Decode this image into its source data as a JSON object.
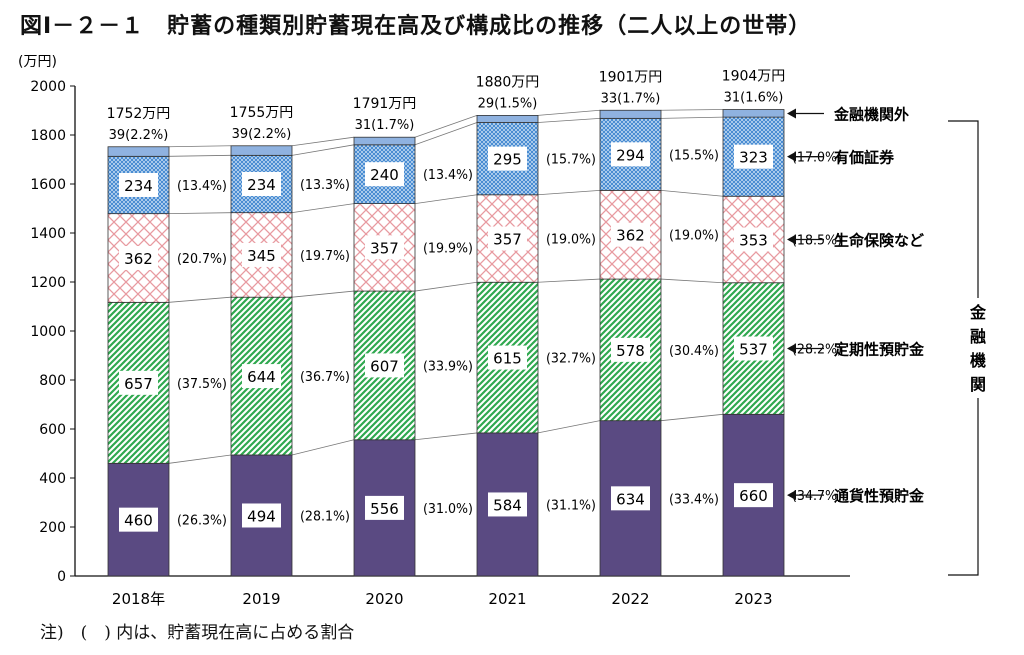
{
  "title": "図Ⅰ－２－１　貯蓄の種類別貯蓄現在高及び構成比の推移（二人以上の世帯）",
  "note": "注)　(　) 内は、貯蓄現在高に占める割合",
  "chart_data": {
    "type": "bar",
    "stacked": true,
    "ylabel": "(万円)",
    "ylim": [
      0,
      2000
    ],
    "yticks": [
      0,
      200,
      400,
      600,
      800,
      1000,
      1200,
      1400,
      1600,
      1800,
      2000
    ],
    "categories": [
      "2018年",
      "2019",
      "2020",
      "2021",
      "2022",
      "2023"
    ],
    "totals": [
      "1752万円",
      "1755万円",
      "1791万円",
      "1880万円",
      "1901万円",
      "1904万円"
    ],
    "total_values": [
      1752,
      1755,
      1791,
      1880,
      1901,
      1904
    ],
    "legend_placement": "right",
    "group_label": "金融機関",
    "series": [
      {
        "name": "通貨性預貯金",
        "pattern": "solid",
        "color": "#5a4a82",
        "values": [
          460,
          494,
          556,
          584,
          634,
          660
        ],
        "labels": [
          "460",
          "494",
          "556",
          "584",
          "634",
          "660"
        ],
        "shares": [
          "(26.3%)",
          "(28.1%)",
          "(31.0%)",
          "(31.1%)",
          "(33.4%)",
          "(34.7%)"
        ]
      },
      {
        "name": "定期性預貯金",
        "pattern": "diagonal",
        "color": "#2fa84f",
        "values": [
          657,
          644,
          607,
          615,
          578,
          537
        ],
        "labels": [
          "657",
          "644",
          "607",
          "615",
          "578",
          "537"
        ],
        "shares": [
          "(37.5%)",
          "(36.7%)",
          "(33.9%)",
          "(32.7%)",
          "(30.4%)",
          "(28.2%)"
        ]
      },
      {
        "name": "生命保険など",
        "pattern": "crosshatch",
        "color": "#e89aa0",
        "values": [
          362,
          345,
          357,
          357,
          362,
          353
        ],
        "labels": [
          "362",
          "345",
          "357",
          "357",
          "362",
          "353"
        ],
        "shares": [
          "(20.7%)",
          "(19.7%)",
          "(19.9%)",
          "(19.0%)",
          "(19.0%)",
          "(18.5%)"
        ]
      },
      {
        "name": "有価証券",
        "pattern": "dots",
        "color": "#3f86d0",
        "values": [
          234,
          234,
          240,
          295,
          294,
          323
        ],
        "labels": [
          "234",
          "234",
          "240",
          "295",
          "294",
          "323"
        ],
        "shares": [
          "(13.4%)",
          "(13.3%)",
          "(13.4%)",
          "(15.7%)",
          "(15.5%)",
          "(17.0%)"
        ]
      },
      {
        "name": "金融機関外",
        "pattern": "solid",
        "color": "#8fb2e0",
        "values": [
          39,
          39,
          31,
          29,
          33,
          31
        ],
        "labels": [
          "39(2.2%)",
          "39(2.2%)",
          "31(1.7%)",
          "29(1.5%)",
          "33(1.7%)",
          "31(1.6%)"
        ],
        "shares": [
          "",
          "",
          "",
          "",
          "",
          ""
        ]
      }
    ]
  }
}
